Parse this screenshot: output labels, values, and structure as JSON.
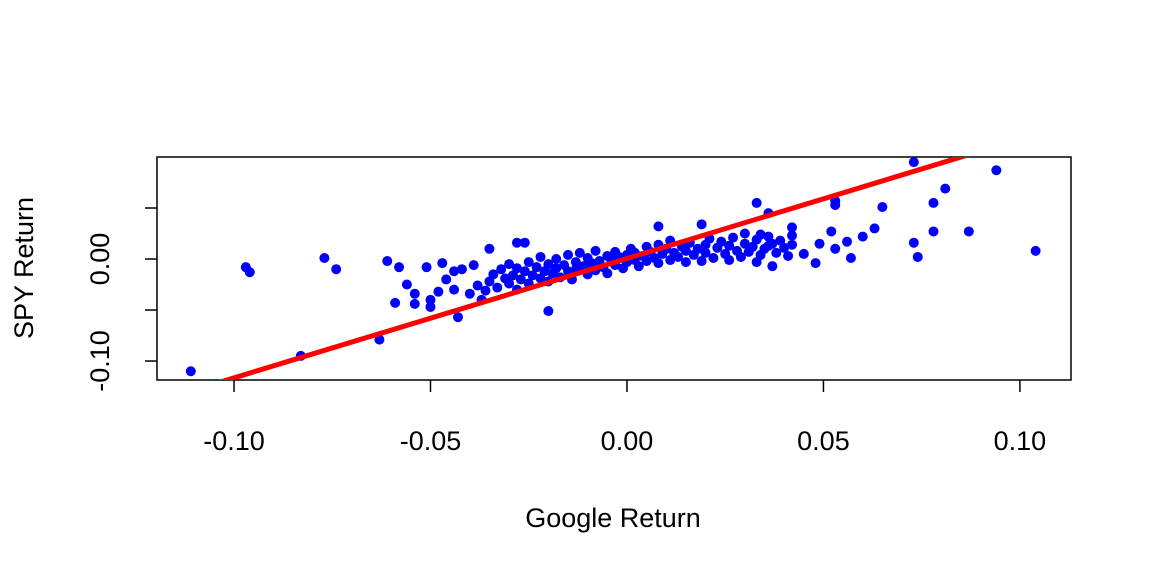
{
  "chart_data": {
    "type": "scatter",
    "xlabel": "Google Return",
    "ylabel": "SPY Return",
    "xlim": [
      -0.1196,
      0.113
    ],
    "ylim": [
      -0.1186,
      0.1
    ],
    "xticks": [
      {
        "value": -0.1,
        "label": "-0.10"
      },
      {
        "value": -0.05,
        "label": "-0.05"
      },
      {
        "value": 0,
        "label": "0.00"
      },
      {
        "value": 0.05,
        "label": "0.05"
      },
      {
        "value": 0.1,
        "label": "0.10"
      }
    ],
    "yticks": [
      {
        "value": -0.1,
        "label": "-0.10"
      },
      {
        "value": -0.05,
        "label": null
      },
      {
        "value": 0,
        "label": "0.00"
      },
      {
        "value": 0.05,
        "label": null
      }
    ],
    "x": [
      -0.111,
      -0.097,
      -0.096,
      -0.077,
      -0.074,
      -0.083,
      -0.063,
      -0.061,
      -0.058,
      -0.059,
      -0.056,
      -0.054,
      -0.054,
      -0.051,
      -0.05,
      -0.05,
      -0.048,
      -0.047,
      -0.044,
      -0.043,
      -0.042,
      -0.04,
      -0.039,
      -0.037,
      -0.02,
      -0.028,
      -0.026,
      -0.035,
      0.033,
      0.036,
      0.008,
      0.019,
      0.053,
      0.053,
      0.052,
      0.049,
      0.053,
      0.056,
      0.057,
      0.06,
      0.063,
      0.065,
      0.073,
      0.073,
      0.074,
      0.078,
      0.078,
      0.081,
      0.087,
      0.094,
      0.104,
      0.048,
      0.045,
      0.036,
      0.037,
      0.034,
      0.042,
      0.042,
      -0.035,
      -0.034,
      -0.033,
      -0.032,
      -0.031,
      -0.03,
      -0.03,
      -0.029,
      -0.028,
      -0.028,
      -0.027,
      -0.026,
      -0.025,
      -0.025,
      -0.024,
      -0.023,
      -0.022,
      -0.022,
      -0.021,
      -0.02,
      -0.02,
      -0.019,
      -0.018,
      -0.018,
      -0.017,
      -0.016,
      -0.015,
      -0.015,
      -0.014,
      -0.013,
      -0.013,
      -0.012,
      -0.011,
      -0.01,
      -0.01,
      -0.009,
      -0.008,
      -0.008,
      -0.007,
      -0.006,
      -0.005,
      -0.005,
      -0.004,
      -0.003,
      -0.003,
      -0.002,
      -0.001,
      0.0,
      0.0,
      0.001,
      0.002,
      0.002,
      0.003,
      0.004,
      0.005,
      0.005,
      0.006,
      0.007,
      0.008,
      0.008,
      0.009,
      0.01,
      0.011,
      0.011,
      0.012,
      0.013,
      0.014,
      0.015,
      0.015,
      0.016,
      0.017,
      0.018,
      0.019,
      0.02,
      0.02,
      0.021,
      0.022,
      0.023,
      0.024,
      0.025,
      0.026,
      0.026,
      0.027,
      0.028,
      0.029,
      0.03,
      0.03,
      0.031,
      0.032,
      0.033,
      0.033,
      0.034,
      0.035,
      0.036,
      0.037,
      0.038,
      0.039,
      0.04,
      0.041,
      0.042,
      -0.044,
      -0.046,
      -0.038,
      -0.036
    ],
    "series": [
      {
        "color": "#0000ff",
        "values": [
          -0.11,
          -0.008,
          -0.013,
          0.001,
          -0.01,
          -0.095,
          -0.079,
          -0.002,
          -0.008,
          -0.043,
          -0.025,
          -0.034,
          -0.044,
          -0.008,
          -0.047,
          -0.04,
          -0.032,
          -0.004,
          -0.03,
          -0.057,
          -0.01,
          -0.034,
          -0.006,
          -0.04,
          -0.051,
          0.016,
          0.016,
          0.01,
          0.055,
          0.045,
          0.032,
          0.034,
          0.053,
          0.057,
          0.027,
          0.015,
          0.01,
          0.017,
          0.001,
          0.022,
          0.03,
          0.051,
          0.095,
          0.016,
          0.002,
          0.055,
          0.027,
          0.069,
          0.027,
          0.087,
          0.008,
          -0.004,
          0.005,
          0.013,
          -0.007,
          0.024,
          0.023,
          0.031,
          -0.022,
          -0.015,
          -0.028,
          -0.01,
          -0.019,
          -0.024,
          -0.005,
          -0.016,
          -0.03,
          -0.009,
          -0.02,
          -0.012,
          -0.024,
          -0.003,
          -0.016,
          -0.008,
          -0.019,
          0.002,
          -0.012,
          -0.022,
          -0.005,
          -0.014,
          0.0,
          -0.009,
          -0.018,
          -0.006,
          -0.012,
          0.004,
          -0.02,
          -0.003,
          -0.01,
          0.006,
          -0.007,
          -0.015,
          0.001,
          -0.004,
          -0.011,
          0.008,
          -0.002,
          -0.008,
          0.003,
          -0.014,
          -0.001,
          0.007,
          -0.006,
          0.002,
          -0.009,
          0.004,
          -0.003,
          0.01,
          -0.001,
          0.006,
          -0.007,
          0.003,
          0.012,
          -0.002,
          0.007,
          0.001,
          0.014,
          -0.004,
          0.005,
          0.01,
          -0.001,
          0.018,
          0.006,
          0.002,
          0.012,
          -0.003,
          0.008,
          0.016,
          0.004,
          0.01,
          -0.002,
          0.014,
          0.006,
          0.02,
          0.001,
          0.011,
          0.017,
          0.005,
          -0.001,
          0.013,
          0.021,
          0.008,
          0.002,
          0.015,
          0.025,
          0.007,
          0.012,
          -0.003,
          0.019,
          0.004,
          0.01,
          0.022,
          0.015,
          0.006,
          0.018,
          0.011,
          0.003,
          0.014,
          -0.012,
          -0.02,
          -0.026,
          -0.031
        ]
      }
    ],
    "regression_line": {
      "intercept": 0.0005,
      "slope": 1.17,
      "color": "#ff0000"
    }
  }
}
